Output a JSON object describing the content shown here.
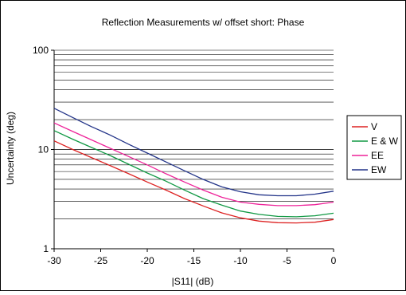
{
  "chart_data": {
    "type": "line",
    "title": "Reflection Measurements w/ offset short: Phase",
    "xlabel": "|S11| (dB)",
    "ylabel": "Uncertainty (deg)",
    "xlim": [
      -30,
      0
    ],
    "ylim": [
      1,
      100
    ],
    "y_scale": "log",
    "x_ticks": [
      -30,
      -25,
      -20,
      -15,
      -10,
      -5,
      0
    ],
    "x_tick_labels": [
      "-30",
      "-25",
      "-20",
      "-15",
      "-10",
      "-5",
      "0"
    ],
    "y_ticks": [
      1,
      10,
      100
    ],
    "y_tick_labels": [
      "1",
      "10",
      "100"
    ],
    "grid": "horizontal gridlines at every y unit",
    "legend_position": "right",
    "x": [
      -30,
      -28,
      -26,
      -24,
      -22,
      -20,
      -18,
      -16,
      -14,
      -12,
      -10,
      -8,
      -6,
      -4,
      -2,
      0
    ],
    "series": [
      {
        "name": "V",
        "color": "#dd2222",
        "values": [
          12.2,
          10.0,
          8.3,
          6.9,
          5.7,
          4.7,
          3.9,
          3.2,
          2.7,
          2.3,
          2.05,
          1.9,
          1.83,
          1.82,
          1.85,
          1.97
        ]
      },
      {
        "name": "E & W",
        "color": "#119944",
        "values": [
          15.5,
          12.7,
          10.5,
          8.7,
          7.1,
          5.8,
          4.8,
          3.9,
          3.2,
          2.75,
          2.4,
          2.22,
          2.12,
          2.1,
          2.15,
          2.28
        ]
      },
      {
        "name": "EE",
        "color": "#ee2299",
        "values": [
          18.5,
          15.2,
          12.5,
          10.3,
          8.5,
          7.0,
          5.7,
          4.7,
          3.9,
          3.3,
          2.95,
          2.8,
          2.72,
          2.72,
          2.78,
          2.95
        ]
      },
      {
        "name": "EW",
        "color": "#223388",
        "values": [
          26.0,
          21.0,
          17.0,
          14.0,
          11.3,
          9.2,
          7.5,
          6.1,
          5.0,
          4.2,
          3.75,
          3.5,
          3.42,
          3.42,
          3.55,
          3.8
        ]
      }
    ]
  }
}
